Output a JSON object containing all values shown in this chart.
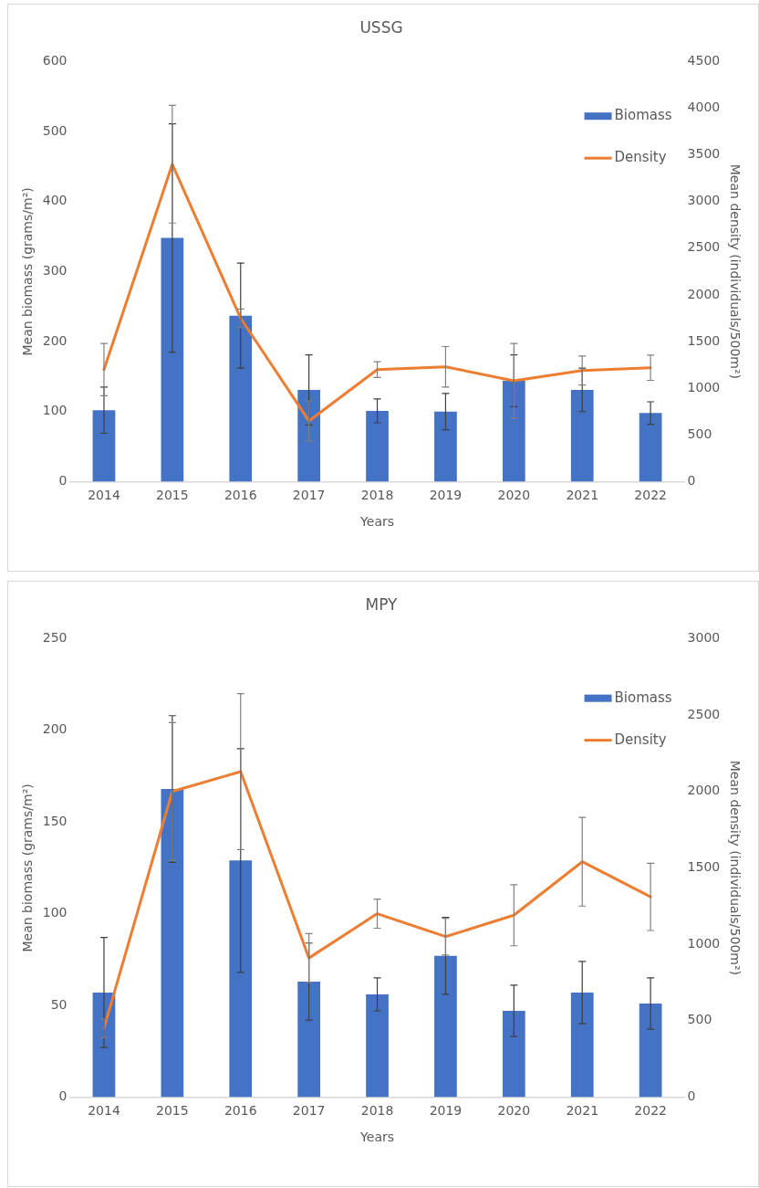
{
  "chart_data": [
    {
      "type": "bar",
      "title": "USSG",
      "xlabel": "Years",
      "ylabel": "Mean biomass (grams/m²)",
      "y2label": "Mean density (individuals/500m²)",
      "categories": [
        "2014",
        "2015",
        "2016",
        "2017",
        "2018",
        "2019",
        "2020",
        "2021",
        "2022"
      ],
      "series": [
        {
          "name": "Biomass",
          "color": "#4472c4",
          "values": [
            102,
            348,
            237,
            131,
            101,
            100,
            144,
            131,
            98
          ],
          "errors": [
            33,
            163,
            75,
            50,
            17,
            26,
            37,
            31,
            16
          ]
        },
        {
          "name": "Density",
          "type": "line",
          "axis": "y2",
          "color": "#ed7d31",
          "values": [
            1200,
            3400,
            1750,
            650,
            1200,
            1230,
            1080,
            1190,
            1220
          ],
          "errors": [
            280,
            630,
            100,
            215,
            85,
            217,
            400,
            155,
            135
          ]
        }
      ],
      "ylim": [
        0,
        600
      ],
      "yticks": [
        0,
        100,
        200,
        300,
        400,
        500,
        600
      ],
      "y2lim": [
        0,
        4500
      ],
      "y2ticks": [
        0,
        500,
        1000,
        1500,
        2000,
        2500,
        3000,
        3500,
        4000,
        4500
      ],
      "legend": "right",
      "grid": false,
      "marker": "none"
    },
    {
      "type": "bar",
      "title": "MPY",
      "xlabel": "Years",
      "ylabel": "Mean biomass (grams/m²)",
      "y2label": "Mean density (individuals/500m²)",
      "categories": [
        "2014",
        "2015",
        "2016",
        "2017",
        "2018",
        "2019",
        "2020",
        "2021",
        "2022"
      ],
      "series": [
        {
          "name": "Biomass",
          "color": "#4472c4",
          "values": [
            57,
            168,
            129,
            63,
            56,
            77,
            47,
            57,
            51
          ],
          "errors": [
            30,
            40,
            61,
            21,
            9,
            21,
            14,
            17,
            14
          ]
        },
        {
          "name": "Density",
          "type": "line",
          "axis": "y2",
          "color": "#ed7d31",
          "values": [
            450,
            2000,
            2130,
            910,
            1200,
            1050,
            1190,
            1540,
            1310
          ],
          "errors": [
            60,
            450,
            510,
            160,
            95,
            120,
            200,
            290,
            220
          ]
        }
      ],
      "ylim": [
        0,
        250
      ],
      "yticks": [
        0,
        50,
        100,
        150,
        200,
        250
      ],
      "y2lim": [
        0,
        3000
      ],
      "y2ticks": [
        0,
        500,
        1000,
        1500,
        2000,
        2500,
        3000
      ],
      "legend": "right",
      "grid": false,
      "marker": "none"
    }
  ]
}
